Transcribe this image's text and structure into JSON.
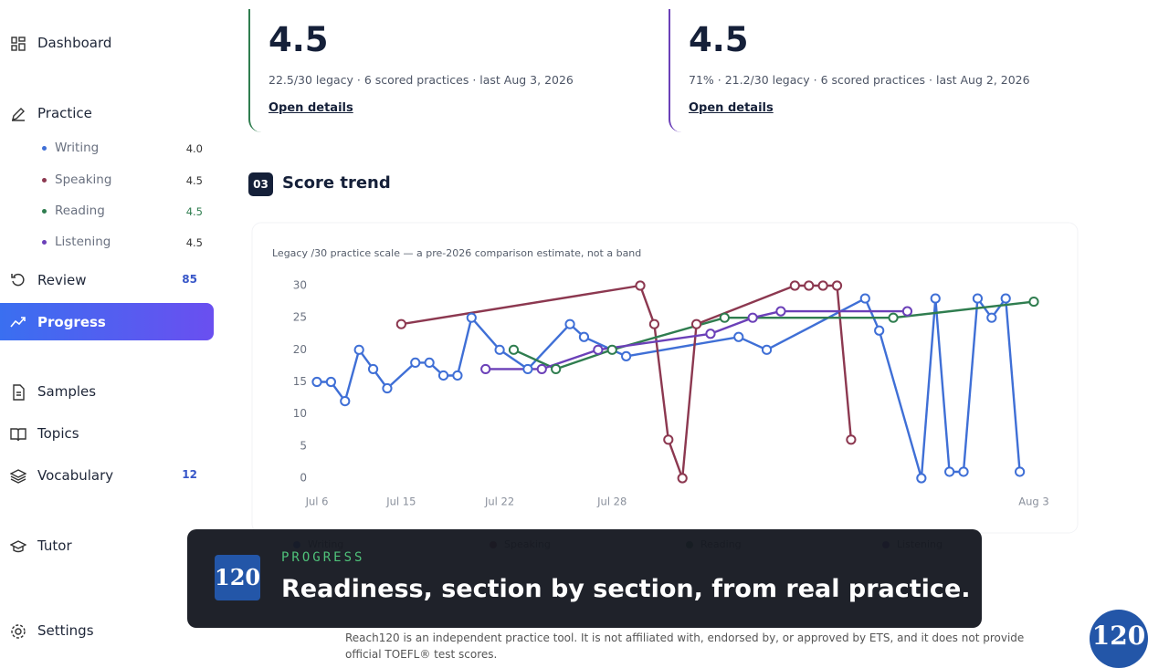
{
  "sidebar": {
    "items": [
      {
        "label": "Dashboard"
      },
      {
        "label": "Practice",
        "subitems": [
          {
            "label": "Writing",
            "score": "4.0"
          },
          {
            "label": "Speaking",
            "score": "4.5"
          },
          {
            "label": "Reading",
            "score": "4.5"
          },
          {
            "label": "Listening",
            "score": "4.5"
          }
        ]
      },
      {
        "label": "Review",
        "badge": "85"
      },
      {
        "label": "Progress"
      },
      {
        "label": "Samples"
      },
      {
        "label": "Topics"
      },
      {
        "label": "Vocabulary",
        "badge": "12"
      },
      {
        "label": "Tutor"
      },
      {
        "label": "Settings"
      }
    ]
  },
  "cards": [
    {
      "score": "4.5",
      "detail": "22.5/30 legacy · 6 scored practices · last Aug 3, 2026",
      "link": "Open details"
    },
    {
      "score": "4.5",
      "detail": "71% · 21.2/30 legacy · 6 scored practices · last Aug 2, 2026",
      "link": "Open details"
    }
  ],
  "section": {
    "number": "03",
    "title": "Score trend"
  },
  "chart_data": {
    "type": "line",
    "subtitle": "Legacy /30 practice scale — a pre-2026 comparison estimate, not a band",
    "categories": [
      "Jul 6",
      null,
      null,
      null,
      null,
      null,
      "Jul 15",
      null,
      null,
      null,
      null,
      null,
      null,
      "Jul 22",
      null,
      null,
      null,
      null,
      null,
      null,
      null,
      "Jul 28",
      null,
      null,
      null,
      null,
      null,
      null,
      null,
      null,
      null,
      null,
      null,
      null,
      null,
      null,
      null,
      null,
      null,
      null,
      null,
      null,
      null,
      null,
      null,
      null,
      null,
      null,
      null,
      null,
      null,
      "Aug 3"
    ],
    "ylim": [
      0,
      30
    ],
    "yticks": [
      0,
      5,
      10,
      15,
      20,
      25,
      30
    ],
    "grid": false,
    "series": [
      {
        "name": "Writing",
        "color": "#3f6fd6",
        "values": [
          15,
          15,
          12,
          20,
          17,
          14,
          null,
          18,
          18,
          16,
          16,
          25,
          null,
          20,
          null,
          17,
          null,
          null,
          24,
          22,
          null,
          null,
          19,
          null,
          null,
          null,
          null,
          null,
          null,
          null,
          22,
          null,
          20,
          null,
          null,
          null,
          null,
          null,
          null,
          28,
          23,
          null,
          null,
          0,
          28,
          1,
          1,
          28,
          25,
          28,
          1,
          null
        ]
      },
      {
        "name": "Speaking",
        "color": "#8c3850",
        "values": [
          null,
          null,
          null,
          null,
          null,
          null,
          24,
          null,
          null,
          null,
          null,
          null,
          null,
          null,
          null,
          null,
          null,
          null,
          null,
          null,
          null,
          null,
          null,
          30,
          24,
          6,
          0,
          24,
          null,
          null,
          null,
          null,
          null,
          null,
          30,
          30,
          30,
          30,
          6,
          null,
          null,
          null,
          null,
          null,
          null,
          null,
          null,
          null,
          null,
          null,
          null,
          null
        ]
      },
      {
        "name": "Reading",
        "color": "#2f7d4f",
        "values": [
          null,
          null,
          null,
          null,
          null,
          null,
          null,
          null,
          null,
          null,
          null,
          null,
          null,
          null,
          20,
          null,
          null,
          17,
          null,
          null,
          null,
          20,
          null,
          null,
          null,
          null,
          null,
          null,
          null,
          25,
          null,
          null,
          null,
          null,
          null,
          null,
          null,
          null,
          null,
          null,
          null,
          25,
          null,
          null,
          null,
          null,
          null,
          null,
          null,
          null,
          null,
          27.5
        ]
      },
      {
        "name": "Listening",
        "color": "#6b40b8",
        "values": [
          null,
          null,
          null,
          null,
          null,
          null,
          null,
          null,
          null,
          null,
          null,
          null,
          17,
          null,
          null,
          null,
          17,
          null,
          null,
          null,
          20,
          null,
          null,
          null,
          null,
          null,
          null,
          null,
          22.5,
          null,
          null,
          25,
          null,
          26,
          null,
          null,
          null,
          null,
          null,
          null,
          null,
          null,
          26,
          null,
          null,
          null,
          null,
          null,
          null,
          null,
          null,
          null
        ]
      }
    ]
  },
  "caption": {
    "logo": "120",
    "kicker": "PROGRESS",
    "headline": "Readiness, section by section, from real practice."
  },
  "footer": {
    "disclaimer": "Reach120 is an independent practice tool. It is not affiliated with, endorsed by, or approved by ETS, and it does not provide official TOEFL® test scores."
  },
  "badge": "120"
}
